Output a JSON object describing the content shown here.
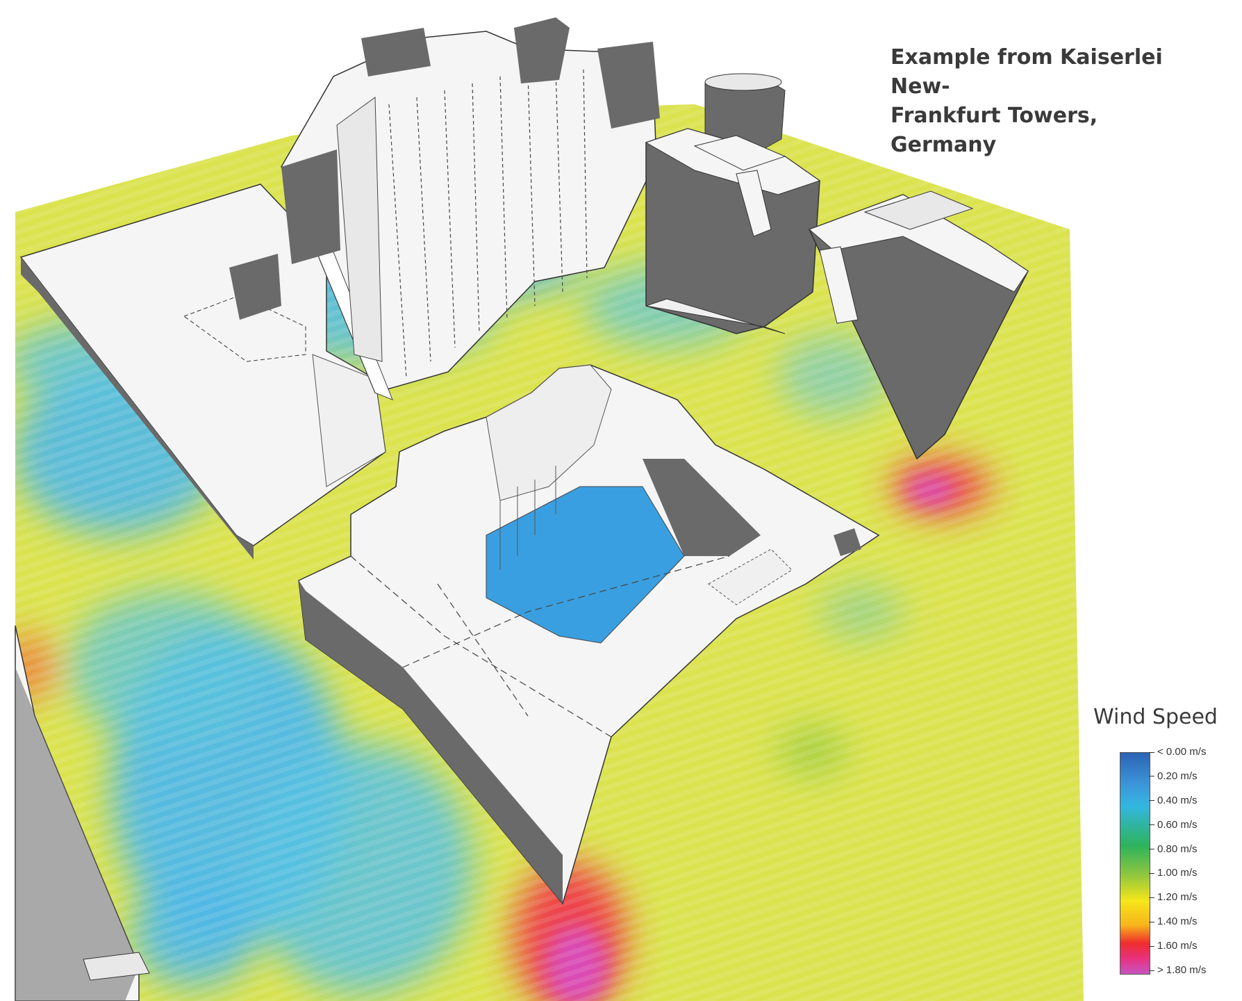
{
  "caption": {
    "line1": "Example from Kaiserlei New-",
    "line2": "Frankfurt Towers, Germany"
  },
  "legend": {
    "title": "Wind Speed",
    "items": [
      {
        "label": "< 0.00 m/s",
        "color": "#2b63b3"
      },
      {
        "label": "0.20  m/s",
        "color": "#3c94d8"
      },
      {
        "label": "0.40  m/s",
        "color": "#33b6e0"
      },
      {
        "label": "0.60  m/s",
        "color": "#2db35c"
      },
      {
        "label": "0.80  m/s",
        "color": "#8ec63f"
      },
      {
        "label": "1.00  m/s",
        "color": "#f5e61a"
      },
      {
        "label": "1.20  m/s",
        "color": "#f7b41c"
      },
      {
        "label": "1.40  m/s",
        "color": "#ef2d2d"
      },
      {
        "label": "1.60  m/s",
        "color": "#e8317e"
      },
      {
        "label": "> 1.80 m/s",
        "color": "#c855c0"
      }
    ]
  },
  "colors": {
    "ground_base": "#dbe34f",
    "calm_zone": "#4fb8e6",
    "courtyard": "#3a9fe0",
    "high_speed": "#ef3a4a",
    "peak_speed": "#d94bb5",
    "building_light": "#f5f5f5",
    "building_dark": "#6a6a6a"
  }
}
